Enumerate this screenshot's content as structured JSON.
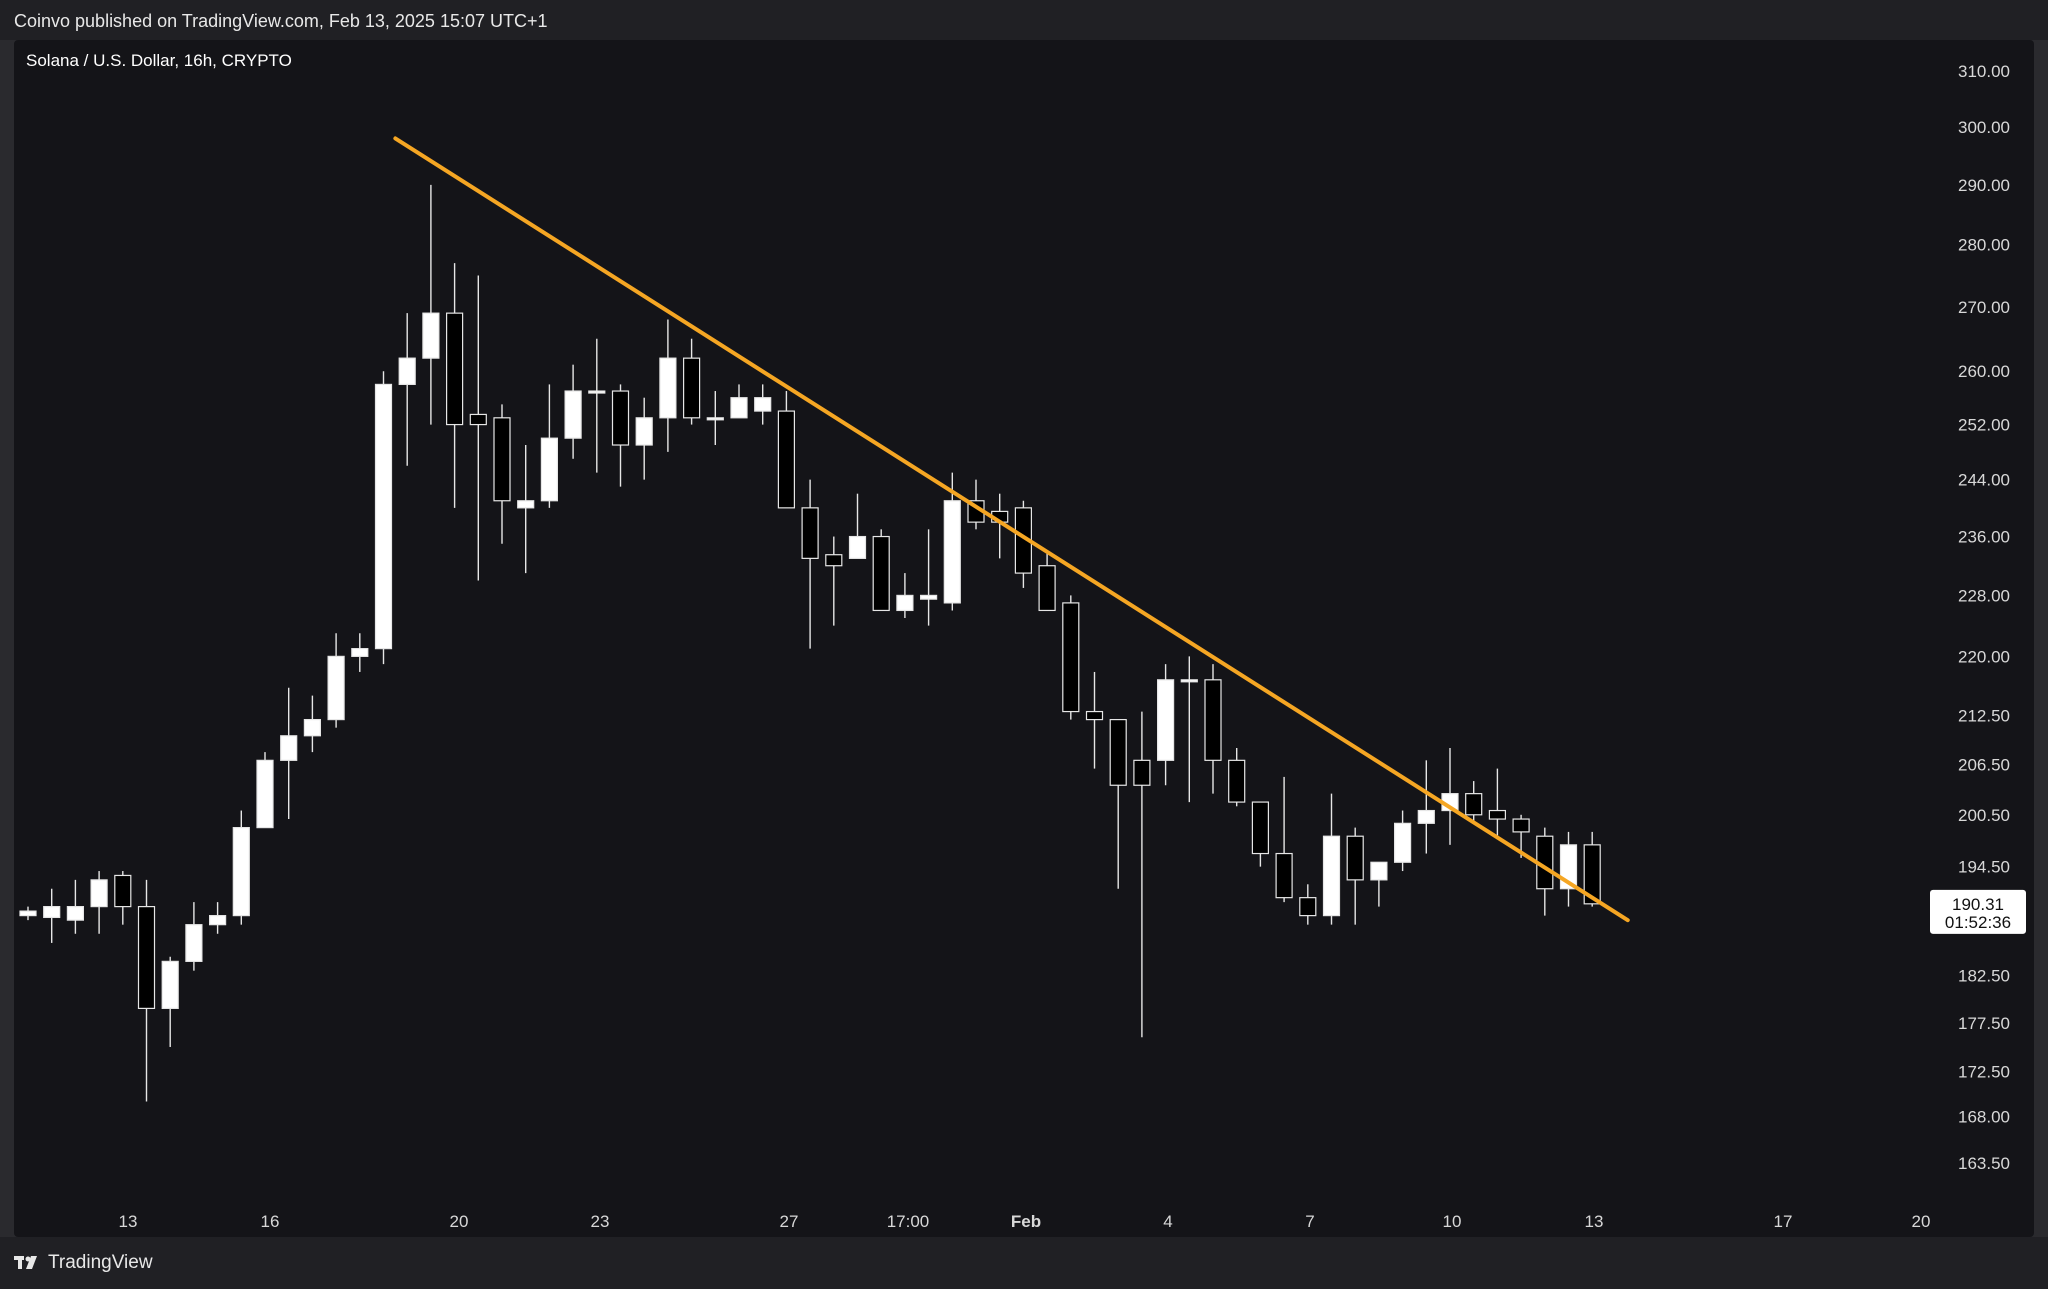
{
  "header": {
    "published": "Coinvo published on TradingView.com, Feb 13, 2025 15:07 UTC+1"
  },
  "symbol": {
    "title": "Solana / U.S. Dollar, 16h, CRYPTO"
  },
  "footer": {
    "brand": "TradingView"
  },
  "colors": {
    "background": "#141418",
    "candle_up": "#ffffff",
    "candle_down": "#000000",
    "trendline": "#f5a623"
  },
  "chart_data": {
    "type": "candlestick",
    "interval": "16h",
    "y_axis": {
      "scale": "log",
      "ylim": [
        160,
        315
      ],
      "tick_labels": [
        "310.00",
        "300.00",
        "290.00",
        "280.00",
        "270.00",
        "260.00",
        "252.00",
        "244.00",
        "236.00",
        "228.00",
        "220.00",
        "212.50",
        "206.50",
        "200.50",
        "194.50",
        "182.50",
        "177.50",
        "172.50",
        "168.00",
        "163.50"
      ],
      "ticks": [
        310,
        300,
        290,
        280,
        270,
        260,
        252,
        244,
        236,
        228,
        220,
        212.5,
        206.5,
        200.5,
        194.5,
        182.5,
        177.5,
        172.5,
        168,
        163.5
      ]
    },
    "x_axis": {
      "tick_labels": [
        "13",
        "16",
        "20",
        "23",
        "27",
        "17:00",
        "Feb",
        "4",
        "7",
        "10",
        "13",
        "17",
        "20"
      ]
    },
    "last_price": {
      "value": "190.31",
      "countdown": "01:52:36"
    },
    "candles": [
      {
        "o": 189.0,
        "h": 190.0,
        "l": 188.5,
        "c": 189.5
      },
      {
        "o": 188.8,
        "h": 192.0,
        "l": 186.0,
        "c": 190.0
      },
      {
        "o": 188.5,
        "h": 193.0,
        "l": 187.0,
        "c": 190.0
      },
      {
        "o": 190.0,
        "h": 194.0,
        "l": 187.0,
        "c": 193.0
      },
      {
        "o": 193.5,
        "h": 194.0,
        "l": 188.0,
        "c": 190.0
      },
      {
        "o": 190.0,
        "h": 193.0,
        "l": 169.5,
        "c": 179.0
      },
      {
        "o": 179.0,
        "h": 184.5,
        "l": 175.0,
        "c": 184.0
      },
      {
        "o": 184.0,
        "h": 190.5,
        "l": 183.0,
        "c": 188.0
      },
      {
        "o": 188.0,
        "h": 190.5,
        "l": 187.0,
        "c": 189.0
      },
      {
        "o": 189.0,
        "h": 201.0,
        "l": 188.0,
        "c": 199.0
      },
      {
        "o": 199.0,
        "h": 208.0,
        "l": 199.0,
        "c": 207.0
      },
      {
        "o": 207.0,
        "h": 216.0,
        "l": 200.0,
        "c": 210.0
      },
      {
        "o": 210.0,
        "h": 215.0,
        "l": 208.0,
        "c": 212.0
      },
      {
        "o": 212.0,
        "h": 223.0,
        "l": 211.0,
        "c": 220.0
      },
      {
        "o": 220.0,
        "h": 223.0,
        "l": 218.0,
        "c": 221.0
      },
      {
        "o": 221.0,
        "h": 260.0,
        "l": 219.0,
        "c": 258.0
      },
      {
        "o": 258.0,
        "h": 269.0,
        "l": 246.0,
        "c": 262.0
      },
      {
        "o": 262.0,
        "h": 290.0,
        "l": 252.0,
        "c": 269.0
      },
      {
        "o": 269.0,
        "h": 277.0,
        "l": 240.0,
        "c": 252.0
      },
      {
        "o": 253.5,
        "h": 275.0,
        "l": 230.0,
        "c": 252.0
      },
      {
        "o": 253.0,
        "h": 255.0,
        "l": 235.0,
        "c": 241.0
      },
      {
        "o": 240.0,
        "h": 249.0,
        "l": 231.0,
        "c": 241.0
      },
      {
        "o": 241.0,
        "h": 258.0,
        "l": 240.0,
        "c": 250.0
      },
      {
        "o": 250.0,
        "h": 261.0,
        "l": 247.0,
        "c": 257.0
      },
      {
        "o": 257.0,
        "h": 265.0,
        "l": 245.0,
        "c": 257.0
      },
      {
        "o": 257.0,
        "h": 258.0,
        "l": 243.0,
        "c": 249.0
      },
      {
        "o": 249.0,
        "h": 256.0,
        "l": 244.0,
        "c": 253.0
      },
      {
        "o": 253.0,
        "h": 268.0,
        "l": 248.0,
        "c": 262.0
      },
      {
        "o": 262.0,
        "h": 265.0,
        "l": 252.0,
        "c": 253.0
      },
      {
        "o": 253.0,
        "h": 257.0,
        "l": 249.0,
        "c": 253.0
      },
      {
        "o": 253.0,
        "h": 258.0,
        "l": 253.0,
        "c": 256.0
      },
      {
        "o": 254.0,
        "h": 258.0,
        "l": 252.0,
        "c": 256.0
      },
      {
        "o": 254.0,
        "h": 257.0,
        "l": 240.0,
        "c": 240.0
      },
      {
        "o": 240.0,
        "h": 244.0,
        "l": 221.0,
        "c": 233.0
      },
      {
        "o": 233.5,
        "h": 236.0,
        "l": 224.0,
        "c": 232.0
      },
      {
        "o": 233.0,
        "h": 242.0,
        "l": 233.0,
        "c": 236.0
      },
      {
        "o": 236.0,
        "h": 237.0,
        "l": 226.0,
        "c": 226.0
      },
      {
        "o": 226.0,
        "h": 231.0,
        "l": 225.0,
        "c": 228.0
      },
      {
        "o": 227.5,
        "h": 237.0,
        "l": 224.0,
        "c": 228.0
      },
      {
        "o": 227.0,
        "h": 245.0,
        "l": 226.0,
        "c": 241.0
      },
      {
        "o": 241.0,
        "h": 244.0,
        "l": 237.0,
        "c": 238.0
      },
      {
        "o": 239.5,
        "h": 242.0,
        "l": 233.0,
        "c": 238.0
      },
      {
        "o": 240.0,
        "h": 241.0,
        "l": 229.0,
        "c": 231.0
      },
      {
        "o": 232.0,
        "h": 234.0,
        "l": 227.0,
        "c": 226.0
      },
      {
        "o": 227.0,
        "h": 228.0,
        "l": 212.0,
        "c": 213.0
      },
      {
        "o": 213.0,
        "h": 218.0,
        "l": 206.0,
        "c": 212.0
      },
      {
        "o": 212.0,
        "h": 212.0,
        "l": 192.0,
        "c": 204.0
      },
      {
        "o": 207.0,
        "h": 213.0,
        "l": 176.0,
        "c": 204.0
      },
      {
        "o": 207.0,
        "h": 219.0,
        "l": 204.0,
        "c": 217.0
      },
      {
        "o": 217.0,
        "h": 220.0,
        "l": 202.0,
        "c": 217.0
      },
      {
        "o": 217.0,
        "h": 219.0,
        "l": 203.0,
        "c": 207.0
      },
      {
        "o": 207.0,
        "h": 208.5,
        "l": 201.5,
        "c": 202.0
      },
      {
        "o": 202.0,
        "h": 202.0,
        "l": 194.5,
        "c": 196.0
      },
      {
        "o": 196.0,
        "h": 205.0,
        "l": 190.5,
        "c": 191.0
      },
      {
        "o": 191.0,
        "h": 192.5,
        "l": 188.0,
        "c": 189.0
      },
      {
        "o": 189.0,
        "h": 203.0,
        "l": 188.0,
        "c": 198.0
      },
      {
        "o": 198.0,
        "h": 199.0,
        "l": 188.0,
        "c": 193.0
      },
      {
        "o": 193.0,
        "h": 195.0,
        "l": 190.0,
        "c": 195.0
      },
      {
        "o": 195.0,
        "h": 201.0,
        "l": 194.0,
        "c": 199.5
      },
      {
        "o": 199.5,
        "h": 207.0,
        "l": 196.0,
        "c": 201.0
      },
      {
        "o": 201.0,
        "h": 208.5,
        "l": 197.0,
        "c": 203.0
      },
      {
        "o": 203.0,
        "h": 204.5,
        "l": 199.5,
        "c": 200.5
      },
      {
        "o": 201.0,
        "h": 206.0,
        "l": 198.0,
        "c": 200.0
      },
      {
        "o": 200.0,
        "h": 200.5,
        "l": 195.5,
        "c": 198.5
      },
      {
        "o": 198.0,
        "h": 199.0,
        "l": 189.0,
        "c": 192.0
      },
      {
        "o": 192.0,
        "h": 198.5,
        "l": 190.0,
        "c": 197.0
      },
      {
        "o": 197.0,
        "h": 198.5,
        "l": 190.0,
        "c": 190.31
      }
    ],
    "trendline": {
      "start": {
        "candle": 15.5,
        "price": 298
      },
      "end": {
        "candle": 67.5,
        "price": 188.5
      }
    }
  }
}
